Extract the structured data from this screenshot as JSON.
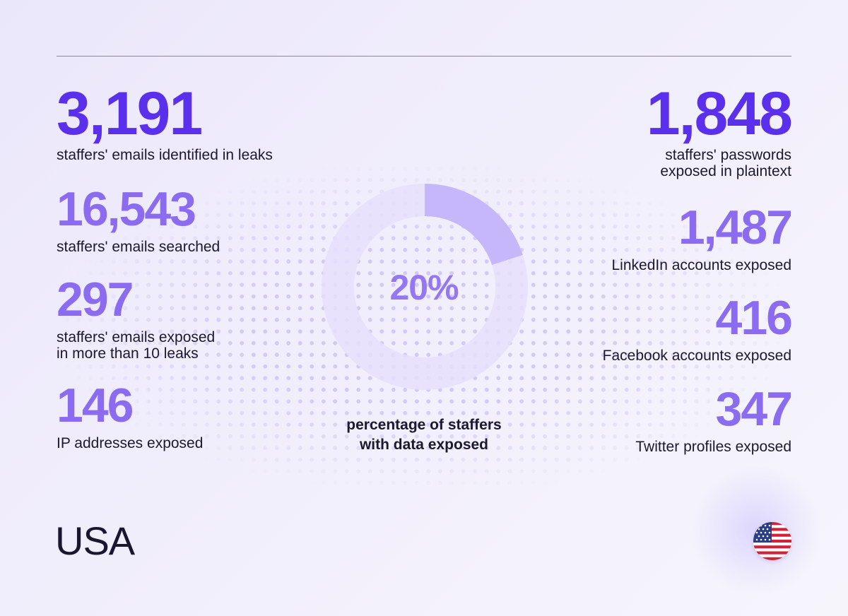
{
  "colors": {
    "primary": "#5a30ec",
    "secondary": "#8b6cf1",
    "donut_fill": "#c6b7fb",
    "donut_track": "#e6dffc",
    "text": "#1c1a2a"
  },
  "left_stats": [
    {
      "value": "3,191",
      "label": "staffers' emails identified in leaks"
    },
    {
      "value": "16,543",
      "label": "staffers' emails searched"
    },
    {
      "value": "297",
      "label": "staffers' emails exposed\nin more than 10 leaks"
    },
    {
      "value": "146",
      "label": "IP addresses exposed"
    }
  ],
  "right_stats": [
    {
      "value": "1,848",
      "label": "staffers' passwords\nexposed in plaintext"
    },
    {
      "value": "1,487",
      "label": "LinkedIn accounts exposed"
    },
    {
      "value": "416",
      "label": "Facebook accounts exposed"
    },
    {
      "value": "347",
      "label": "Twitter profiles exposed"
    }
  ],
  "chart_data": {
    "type": "pie",
    "value_label": "20%",
    "values": [
      20,
      80
    ],
    "caption": "percentage of staffers\nwith data exposed"
  },
  "country": {
    "name": "USA",
    "flag_icon": "us-flag-icon"
  }
}
